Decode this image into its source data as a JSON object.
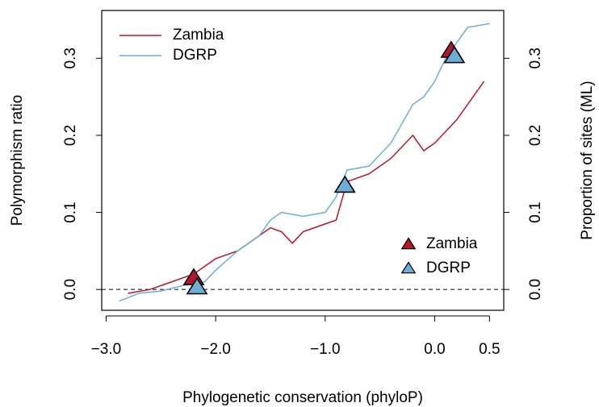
{
  "chart_data": {
    "type": "line",
    "x_label": "Phylogenetic conservation (phyloP)",
    "y_label": "Polymorphism ratio",
    "y2_label": "Proportion of sites (ML)",
    "xlim": [
      -3.04,
      0.63
    ],
    "ylim": [
      -0.027,
      0.362
    ],
    "y2lim": [
      -0.027,
      0.362
    ],
    "xticks": [
      {
        "value": -3,
        "label": "−3.0"
      },
      {
        "value": -2,
        "label": "−2.0"
      },
      {
        "value": -1,
        "label": "−1.0"
      },
      {
        "value": 0,
        "label": "0.0"
      },
      0.5
    ],
    "yticks": [
      {
        "value": 0,
        "label": "0.0"
      },
      0.1,
      0.2,
      0.3
    ],
    "y2ticks": [
      {
        "value": 0,
        "label": "0.0"
      },
      0.1,
      0.2,
      0.3
    ],
    "reference_line": {
      "value": 0,
      "style": "dashed"
    },
    "series": [
      {
        "name": "Zambia",
        "color": "#b2182b",
        "marker": "line",
        "legend": "top-left",
        "x": [
          -2.8,
          -2.6,
          -2.4,
          -2.2,
          -2.0,
          -1.8,
          -1.6,
          -1.5,
          -1.4,
          -1.3,
          -1.2,
          -1.0,
          -0.9,
          -0.8,
          -0.6,
          -0.4,
          -0.2,
          -0.1,
          0.0,
          0.2,
          0.4,
          0.45
        ],
        "values": [
          -0.005,
          0.0,
          0.01,
          0.02,
          0.04,
          0.05,
          0.07,
          0.08,
          0.075,
          0.06,
          0.075,
          0.085,
          0.09,
          0.14,
          0.15,
          0.17,
          0.2,
          0.18,
          0.19,
          0.22,
          0.26,
          0.27
        ]
      },
      {
        "name": "DGRP",
        "color": "#6baed6",
        "marker": "line",
        "legend": "top-left",
        "x": [
          -2.88,
          -2.7,
          -2.5,
          -2.3,
          -2.1,
          -2.0,
          -1.8,
          -1.6,
          -1.5,
          -1.4,
          -1.2,
          -1.0,
          -0.9,
          -0.8,
          -0.6,
          -0.4,
          -0.2,
          -0.1,
          0.0,
          0.1,
          0.2,
          0.3,
          0.5
        ],
        "values": [
          -0.015,
          -0.005,
          -0.002,
          0.005,
          0.01,
          0.025,
          0.05,
          0.07,
          0.09,
          0.1,
          0.095,
          0.1,
          0.12,
          0.155,
          0.16,
          0.19,
          0.24,
          0.25,
          0.27,
          0.3,
          0.32,
          0.34,
          0.345
        ]
      },
      {
        "name": "Zambia",
        "color": "#b2182b",
        "marker": "triangle",
        "axis": "y2",
        "legend": "bottom-right",
        "x": [
          -2.2,
          -0.82,
          0.15
        ],
        "values": [
          0.015,
          0.135,
          0.31
        ]
      },
      {
        "name": "DGRP",
        "color": "#6baed6",
        "marker": "triangle",
        "axis": "y2",
        "legend": "bottom-right",
        "x": [
          -2.17,
          -0.82,
          0.18
        ],
        "values": [
          0.003,
          0.135,
          0.303
        ]
      }
    ]
  }
}
